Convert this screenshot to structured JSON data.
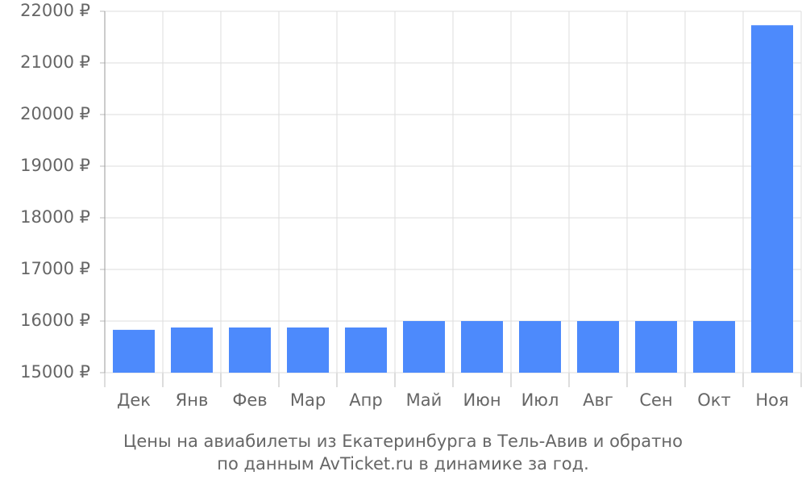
{
  "chart_data": {
    "type": "bar",
    "title": "Цены на авиабилеты из Екатеринбурга в Тель-Авив и обратно",
    "subtitle": "по данным AvTicket.ru в динамике за год.",
    "categories": [
      "Дек",
      "Янв",
      "Фев",
      "Мар",
      "Апр",
      "Май",
      "Июн",
      "Июл",
      "Авг",
      "Сен",
      "Окт",
      "Ноя"
    ],
    "values": [
      15830,
      15875,
      15875,
      15875,
      15875,
      16000,
      16000,
      16000,
      16000,
      16000,
      16000,
      21730
    ],
    "color": "#4d8afc",
    "ylim": [
      15000,
      22000
    ],
    "yticks": [
      {
        "value": 15000,
        "label": "15000 ₽"
      },
      {
        "value": 16000,
        "label": "16000 ₽"
      },
      {
        "value": 17000,
        "label": "17000 ₽"
      },
      {
        "value": 18000,
        "label": "18000 ₽"
      },
      {
        "value": 19000,
        "label": "19000 ₽"
      },
      {
        "value": 20000,
        "label": "20000 ₽"
      },
      {
        "value": 21000,
        "label": "21000 ₽"
      },
      {
        "value": 22000,
        "label": "22000 ₽"
      }
    ],
    "grid": true
  }
}
